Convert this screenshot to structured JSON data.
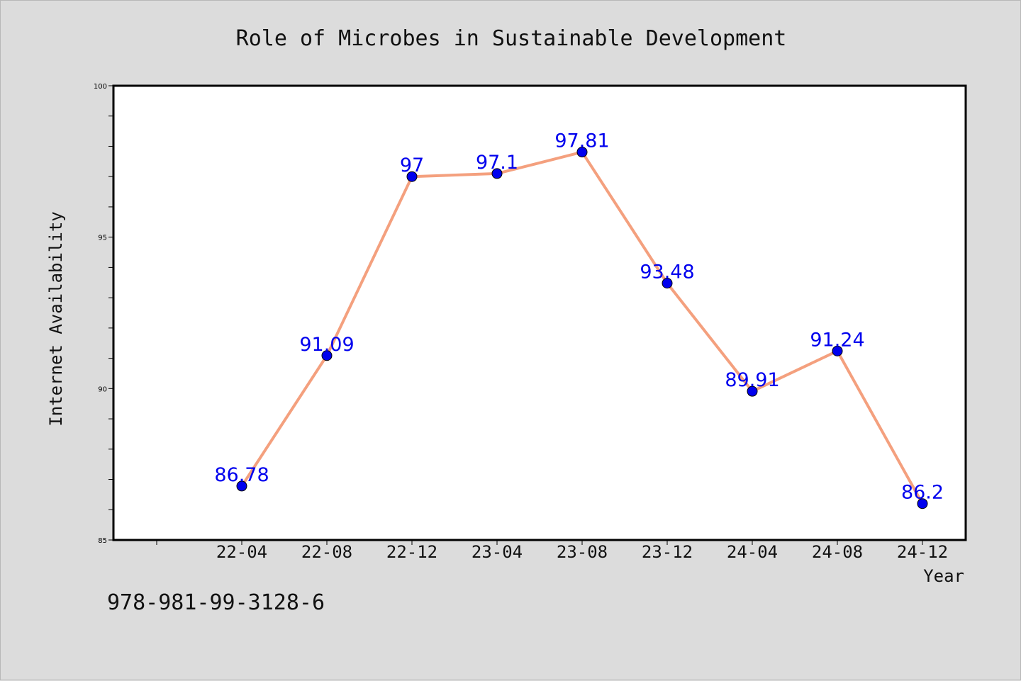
{
  "caption": "978-981-99-3128-6",
  "chart_data": {
    "type": "line",
    "title": "Role of Microbes in Sustainable Development",
    "xlabel": "Year",
    "ylabel": "Internet Availability",
    "categories": [
      "22-04",
      "22-08",
      "22-12",
      "23-04",
      "23-08",
      "23-12",
      "24-04",
      "24-08",
      "24-12"
    ],
    "series": [
      {
        "values": [
          86.78,
          91.09,
          97,
          97.1,
          97.81,
          93.48,
          89.91,
          91.24,
          86.2
        ],
        "line_color": "#f4a07e",
        "marker_color": "#0000ee",
        "label_color": "#0000ee"
      }
    ],
    "data_labels": [
      "86.78",
      "91.09",
      "97",
      "97.1",
      "97.81",
      "93.48",
      "89.91",
      "91.24",
      "86.2"
    ],
    "ylim": [
      85,
      100
    ],
    "y_ticks": [
      85,
      90,
      95,
      100
    ],
    "y_tick_labels": [
      "85",
      "90",
      "95",
      "100"
    ],
    "y_minor_step": 1,
    "grid": false,
    "legend": "none"
  }
}
